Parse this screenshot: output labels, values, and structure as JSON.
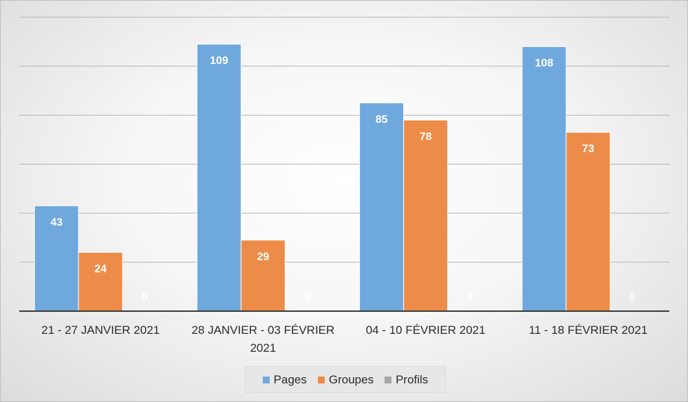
{
  "chart_data": {
    "type": "bar",
    "categories": [
      [
        "21 - 27 JANVIER 2021"
      ],
      [
        "28 JANVIER - 03 FÉVRIER",
        "2021"
      ],
      [
        "04 - 10 FÉVRIER 2021"
      ],
      [
        "11 - 18 FÉVRIER 2021"
      ]
    ],
    "series": [
      {
        "name": "Pages",
        "values": [
          43,
          109,
          85,
          108
        ],
        "color": "#6fa8dc"
      },
      {
        "name": "Groupes",
        "values": [
          24,
          29,
          78,
          73
        ],
        "color": "#ed8c48"
      },
      {
        "name": "Profils",
        "values": [
          0,
          0,
          0,
          0
        ],
        "color": "#a5a5a5"
      }
    ],
    "ylim": [
      0,
      120
    ],
    "grid": true,
    "data_labels": true,
    "legend_position": "bottom"
  }
}
